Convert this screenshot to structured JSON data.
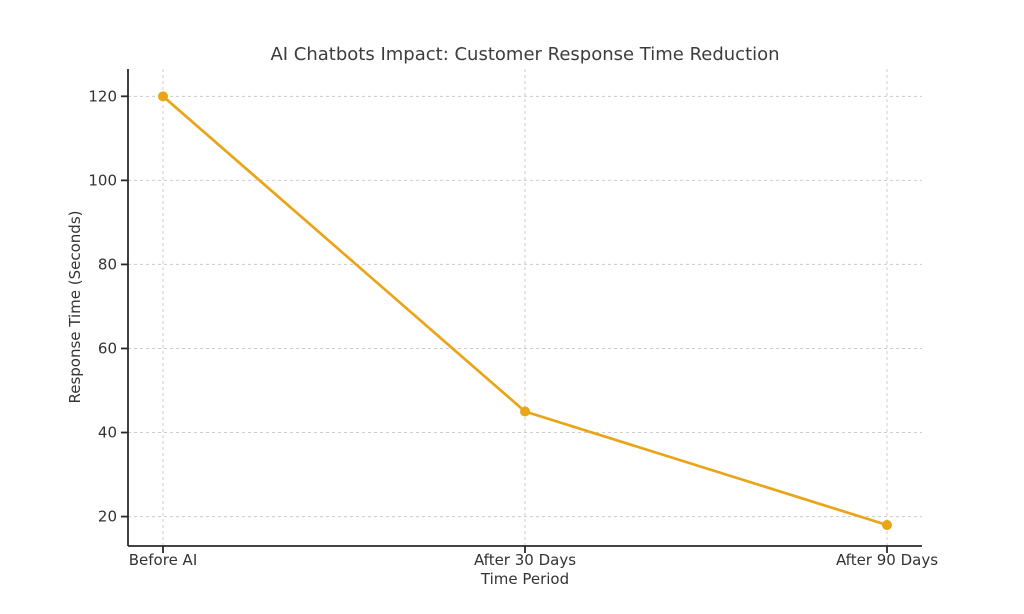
{
  "chart_data": {
    "type": "line",
    "title": "AI Chatbots Impact: Customer Response Time Reduction",
    "xlabel": "Time Period",
    "ylabel": "Response Time (Seconds)",
    "categories": [
      "Before AI",
      "After 30 Days",
      "After 90 Days"
    ],
    "series": [
      {
        "name": "Response Time",
        "values": [
          120,
          45,
          18
        ],
        "color": "#E9A417",
        "marker": "circle"
      }
    ],
    "yticks": [
      20,
      40,
      60,
      80,
      100,
      120
    ],
    "ylim": [
      13,
      126.5
    ],
    "grid": true,
    "grid_style": "dashed",
    "grid_color": "#cccccc",
    "axis_color": "#2a2a2a",
    "text_color": "#333333",
    "background": "#ffffff",
    "legend": null
  }
}
